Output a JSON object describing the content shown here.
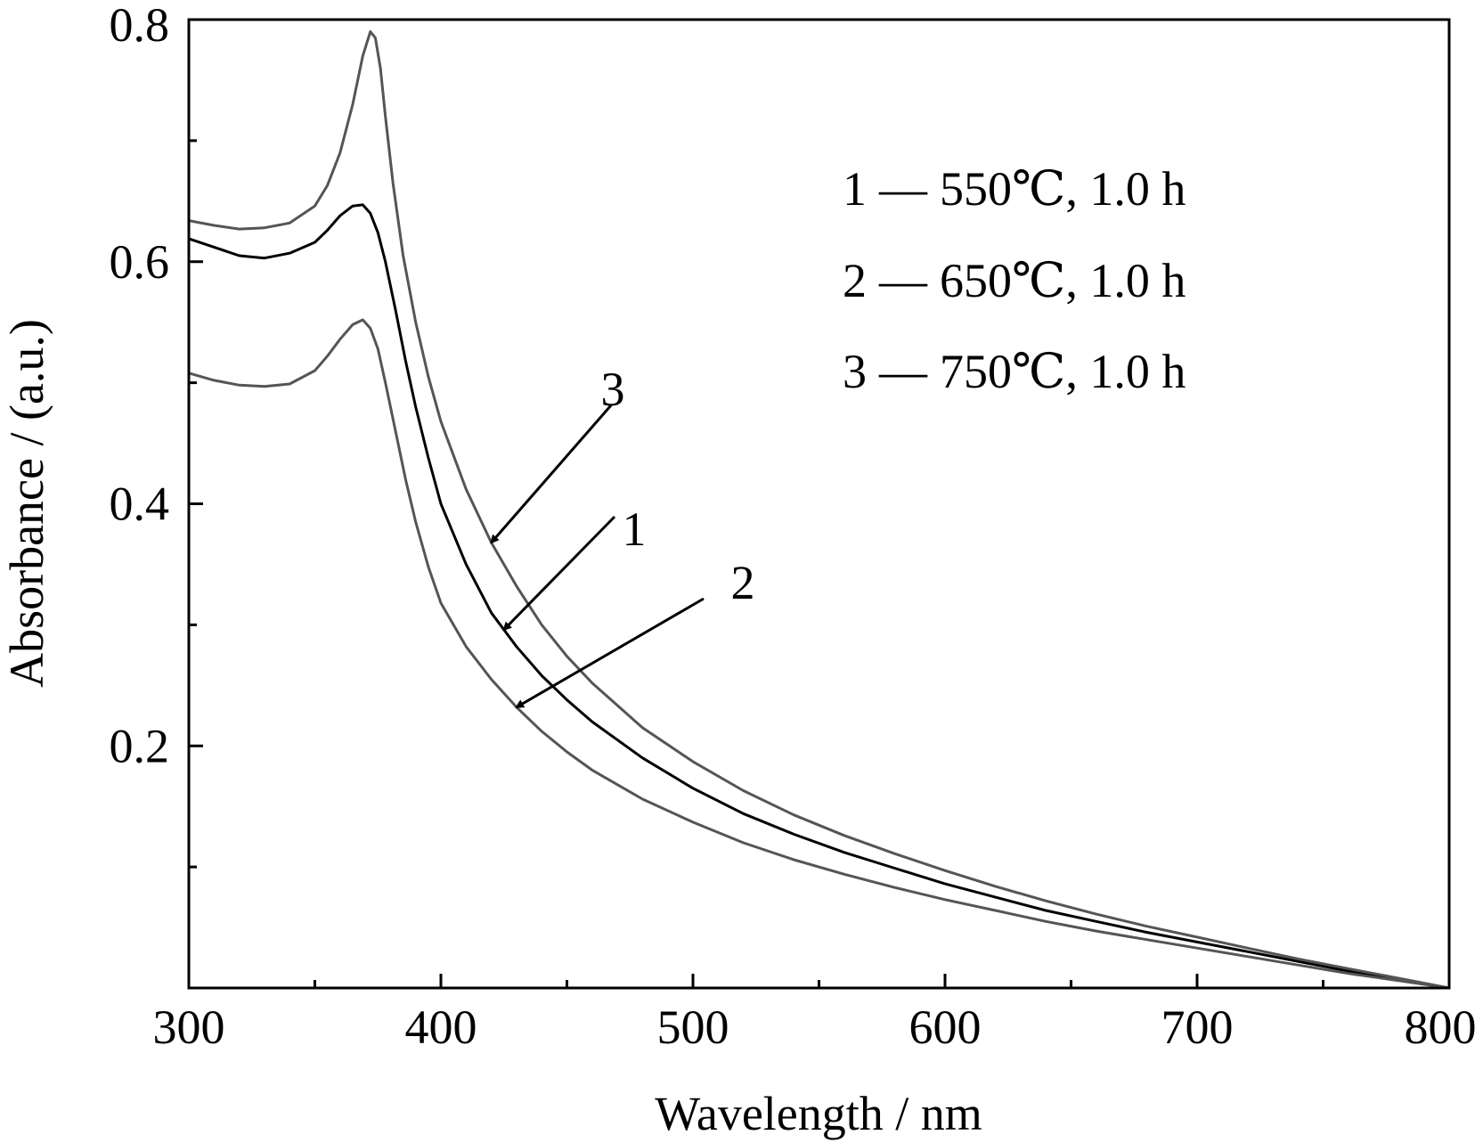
{
  "chart_data": {
    "type": "line",
    "title": "",
    "xlabel": "Wavelength / nm",
    "ylabel": "Absorbance / (a.u.)",
    "xlim": [
      300,
      800
    ],
    "ylim": [
      0.0,
      0.8
    ],
    "x_ticks": [
      300,
      400,
      500,
      600,
      700,
      800
    ],
    "x_tick_labels": [
      "300",
      "400",
      "500",
      "600",
      "700",
      "800"
    ],
    "x_minor_ticks": [
      350,
      450,
      550,
      650,
      750
    ],
    "y_ticks": [
      0.2,
      0.4,
      0.6,
      0.8
    ],
    "y_tick_labels": [
      "0.2",
      "0.4",
      "0.6",
      "0.8"
    ],
    "y_minor_ticks": [
      0.1,
      0.3,
      0.5,
      0.7
    ],
    "grid": false,
    "legend_position": "top-right",
    "legend": [
      {
        "number": "1",
        "dash": "—",
        "label": "550℃, 1.0 h"
      },
      {
        "number": "2",
        "dash": "—",
        "label": "650℃, 1.0 h"
      },
      {
        "number": "3",
        "dash": "—",
        "label": "750℃, 1.0 h"
      }
    ],
    "series": [
      {
        "id": "1",
        "color": "#000000",
        "x": [
          300,
          310,
          320,
          330,
          340,
          350,
          355,
          360,
          365,
          369,
          372,
          375,
          378,
          382,
          386,
          390,
          395,
          400,
          410,
          420,
          430,
          440,
          450,
          460,
          480,
          500,
          520,
          540,
          560,
          580,
          600,
          620,
          640,
          660,
          680,
          700,
          720,
          740,
          760,
          780,
          800
        ],
        "y": [
          0.619,
          0.612,
          0.605,
          0.603,
          0.607,
          0.616,
          0.626,
          0.638,
          0.646,
          0.647,
          0.64,
          0.624,
          0.6,
          0.56,
          0.518,
          0.48,
          0.438,
          0.4,
          0.35,
          0.31,
          0.282,
          0.258,
          0.238,
          0.22,
          0.19,
          0.165,
          0.144,
          0.127,
          0.112,
          0.099,
          0.086,
          0.075,
          0.064,
          0.055,
          0.046,
          0.038,
          0.03,
          0.022,
          0.014,
          0.007,
          0.0
        ]
      },
      {
        "id": "2",
        "color": "#555555",
        "x": [
          300,
          310,
          320,
          330,
          340,
          350,
          355,
          360,
          365,
          369,
          372,
          375,
          378,
          382,
          386,
          390,
          395,
          400,
          410,
          420,
          430,
          440,
          450,
          460,
          480,
          500,
          520,
          540,
          560,
          580,
          600,
          620,
          640,
          660,
          680,
          700,
          720,
          740,
          760,
          780,
          800
        ],
        "y": [
          0.508,
          0.502,
          0.498,
          0.497,
          0.499,
          0.51,
          0.522,
          0.536,
          0.548,
          0.552,
          0.545,
          0.528,
          0.5,
          0.46,
          0.42,
          0.385,
          0.348,
          0.318,
          0.282,
          0.255,
          0.232,
          0.212,
          0.195,
          0.18,
          0.156,
          0.137,
          0.12,
          0.106,
          0.094,
          0.083,
          0.073,
          0.064,
          0.055,
          0.047,
          0.04,
          0.033,
          0.026,
          0.019,
          0.012,
          0.006,
          0.0
        ]
      },
      {
        "id": "3",
        "color": "#555555",
        "x": [
          300,
          310,
          320,
          330,
          340,
          350,
          355,
          360,
          365,
          369,
          372,
          374,
          376,
          378,
          381,
          385,
          390,
          395,
          400,
          410,
          420,
          430,
          440,
          450,
          460,
          480,
          500,
          520,
          540,
          560,
          580,
          600,
          620,
          640,
          660,
          680,
          700,
          720,
          740,
          760,
          780,
          800
        ],
        "y": [
          0.634,
          0.63,
          0.627,
          0.628,
          0.632,
          0.646,
          0.663,
          0.69,
          0.73,
          0.77,
          0.79,
          0.785,
          0.76,
          0.72,
          0.665,
          0.605,
          0.55,
          0.505,
          0.468,
          0.412,
          0.368,
          0.332,
          0.3,
          0.274,
          0.252,
          0.215,
          0.187,
          0.163,
          0.143,
          0.126,
          0.111,
          0.097,
          0.084,
          0.072,
          0.061,
          0.051,
          0.042,
          0.033,
          0.024,
          0.016,
          0.008,
          0.0
        ]
      }
    ],
    "annotations": [
      {
        "text": "3",
        "points_to_series": "3",
        "at_x": 420
      },
      {
        "text": "1",
        "points_to_series": "1",
        "at_x": 425
      },
      {
        "text": "2",
        "points_to_series": "2",
        "at_x": 430
      }
    ]
  }
}
